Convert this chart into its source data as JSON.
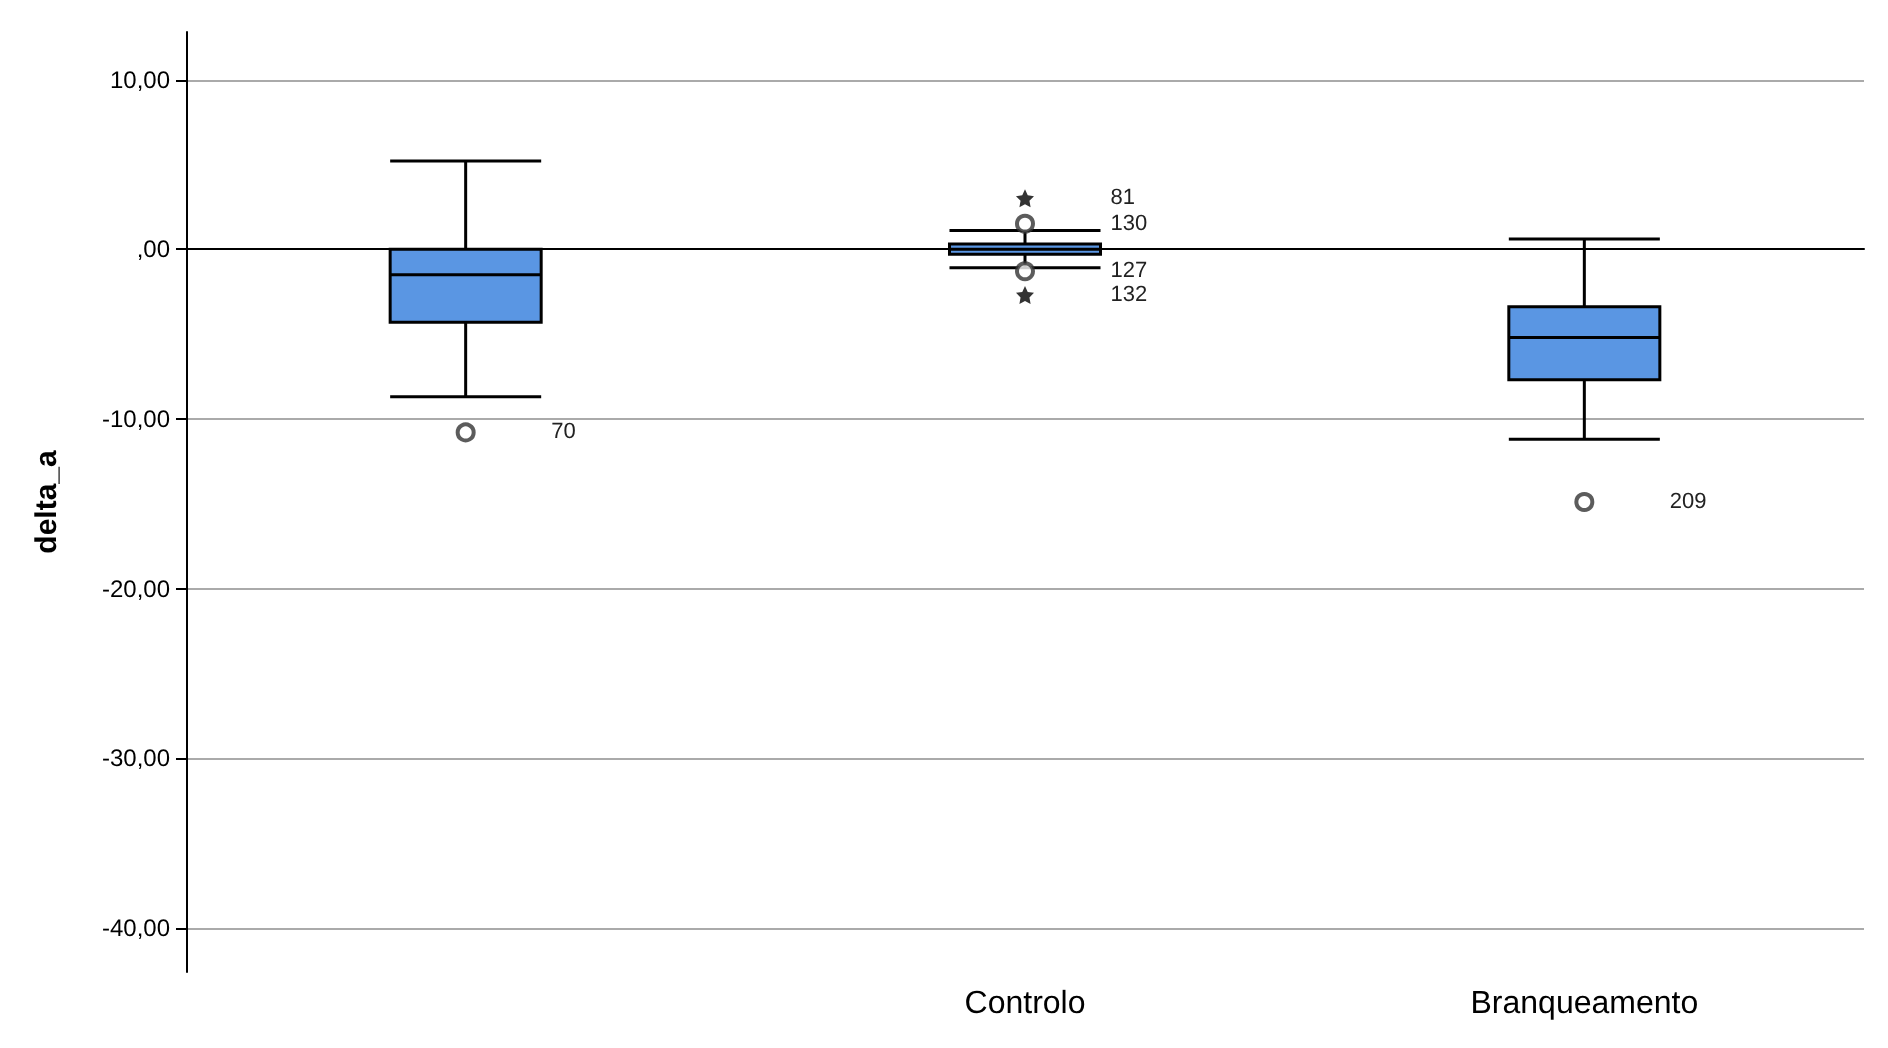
{
  "chart_data": {
    "type": "box",
    "ylabel": "delta_a",
    "categories": [
      null,
      "Controlo",
      "Branqueamento"
    ],
    "series": [
      {
        "color": "#5a96e3",
        "boxes": [
          {
            "low": -8.7,
            "q1": -4.3,
            "median": -1.5,
            "q3": 0,
            "high": 5.2,
            "outliers": [
              -10.8
            ]
          },
          {
            "low": -1.1,
            "q1": -0.3,
            "median": 0,
            "q3": 0.3,
            "high": 1.1,
            "outliers": [
              1.5,
              -1.3
            ]
          },
          {
            "low": -11.2,
            "q1": -7.7,
            "median": -5.2,
            "q3": -3.4,
            "high": 0.6,
            "outliers": [
              -14.9
            ]
          }
        ]
      },
      {
        "type": "scatter",
        "marker": "star",
        "color": "#000000",
        "x": [
          "Controlo",
          "Controlo"
        ],
        "values": [
          3.0,
          -2.7
        ]
      }
    ],
    "ylim": [
      -42.6,
      12.8
    ],
    "yticks": [
      {
        "value": 10,
        "label": "10,00"
      },
      {
        "value": 0,
        "label": ",00"
      },
      {
        "value": -10,
        "label": "-10,00"
      },
      {
        "value": -20,
        "label": "-20,00"
      },
      {
        "value": -30,
        "label": "-30,00"
      },
      {
        "value": -40,
        "label": "-40,00"
      }
    ],
    "grid": "y",
    "annotations": [
      "70",
      "81",
      "130",
      "127",
      "132",
      "209"
    ]
  }
}
